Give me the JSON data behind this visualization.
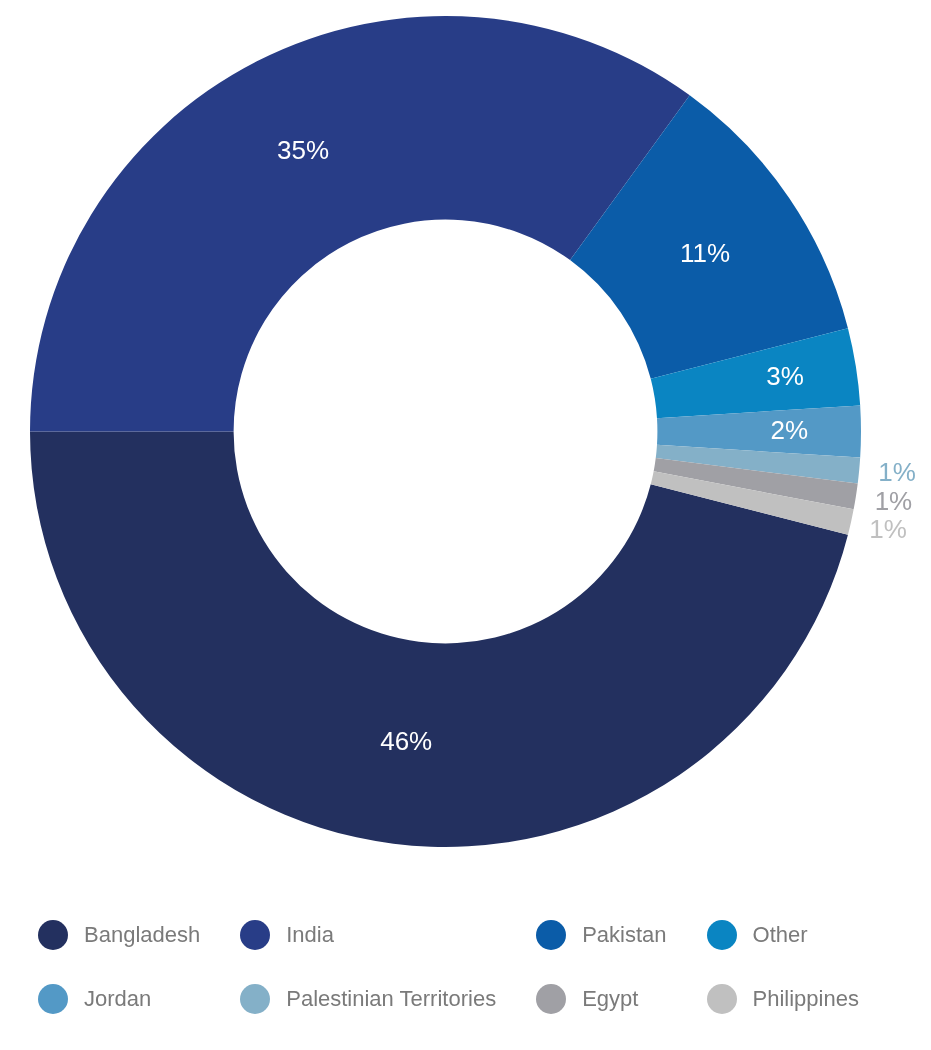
{
  "chart_data": {
    "type": "donut",
    "categories": [
      "Bangladesh",
      "India",
      "Pakistan",
      "Other",
      "Jordan",
      "Palestinian Territories",
      "Egypt",
      "Philippines"
    ],
    "values": [
      46,
      35,
      11,
      3,
      2,
      1,
      1,
      1
    ],
    "colors": [
      "#23305f",
      "#283d87",
      "#0b5ca8",
      "#0a85c2",
      "#5399c6",
      "#84b0c8",
      "#a0a0a5",
      "#c0c0c0"
    ],
    "value_labels": [
      "46%",
      "35%",
      "11%",
      "3%",
      "2%",
      "1%",
      "1%",
      "1%"
    ],
    "legend": "bottom"
  }
}
